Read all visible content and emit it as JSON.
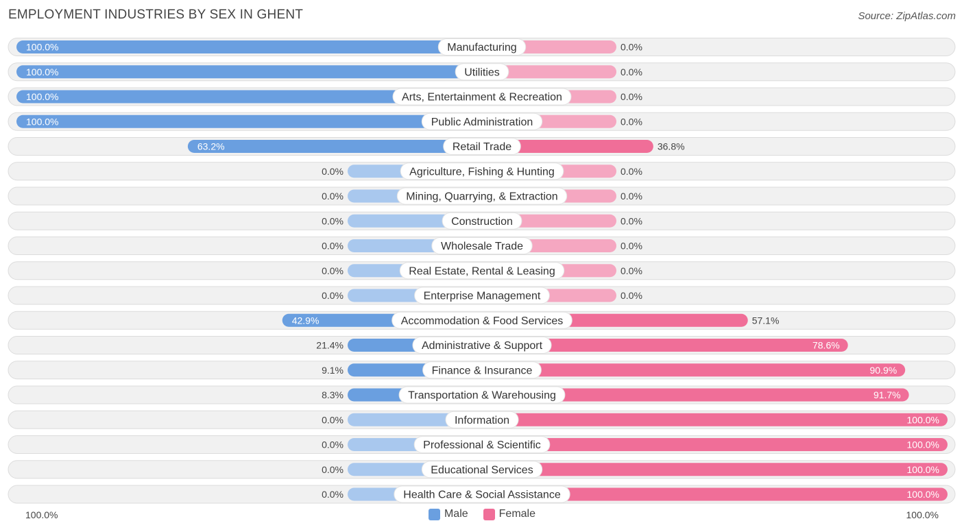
{
  "title": "EMPLOYMENT INDUSTRIES BY SEX IN GHENT",
  "source": "Source: ZipAtlas.com",
  "chart_data": {
    "type": "bar",
    "orientation": "horizontal-diverging",
    "categories": [
      "Manufacturing",
      "Utilities",
      "Arts, Entertainment & Recreation",
      "Public Administration",
      "Retail Trade",
      "Agriculture, Fishing & Hunting",
      "Mining, Quarrying, & Extraction",
      "Construction",
      "Wholesale Trade",
      "Real Estate, Rental & Leasing",
      "Enterprise Management",
      "Accommodation & Food Services",
      "Administrative & Support",
      "Finance & Insurance",
      "Transportation & Warehousing",
      "Information",
      "Professional & Scientific",
      "Educational Services",
      "Health Care & Social Assistance"
    ],
    "series": [
      {
        "name": "Male",
        "color": "#6a9fe0",
        "color_light": "#a9c8ee",
        "values": [
          100.0,
          100.0,
          100.0,
          100.0,
          63.2,
          0.0,
          0.0,
          0.0,
          0.0,
          0.0,
          0.0,
          42.9,
          21.4,
          9.1,
          8.3,
          0.0,
          0.0,
          0.0,
          0.0
        ],
        "labels": [
          "100.0%",
          "100.0%",
          "100.0%",
          "100.0%",
          "63.2%",
          "0.0%",
          "0.0%",
          "0.0%",
          "0.0%",
          "0.0%",
          "0.0%",
          "42.9%",
          "21.4%",
          "9.1%",
          "8.3%",
          "0.0%",
          "0.0%",
          "0.0%",
          "0.0%"
        ]
      },
      {
        "name": "Female",
        "color": "#f06e98",
        "color_light": "#f5a7c1",
        "values": [
          0.0,
          0.0,
          0.0,
          0.0,
          36.8,
          0.0,
          0.0,
          0.0,
          0.0,
          0.0,
          0.0,
          57.1,
          78.6,
          90.9,
          91.7,
          100.0,
          100.0,
          100.0,
          100.0
        ],
        "labels": [
          "0.0%",
          "0.0%",
          "0.0%",
          "0.0%",
          "36.8%",
          "0.0%",
          "0.0%",
          "0.0%",
          "0.0%",
          "0.0%",
          "0.0%",
          "57.1%",
          "78.6%",
          "90.9%",
          "91.7%",
          "100.0%",
          "100.0%",
          "100.0%",
          "100.0%"
        ]
      }
    ],
    "xlim": [
      -100,
      100
    ],
    "axis_left_label": "100.0%",
    "axis_right_label": "100.0%",
    "legend_position": "bottom-center",
    "grid": false
  }
}
